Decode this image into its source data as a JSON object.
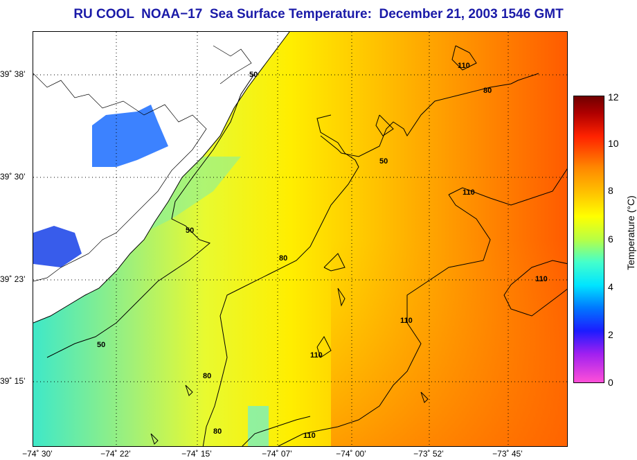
{
  "title": "RU COOL  NOAA−17  Sea Surface Temperature:  December 21, 2003 1546 GMT",
  "latitude_labels": [
    "39˚ 38’",
    "39˚ 30’",
    "39˚ 23’",
    "39˚ 15’"
  ],
  "longitude_labels": [
    "−74˚ 30’",
    "−74˚ 22’",
    "−74˚ 15’",
    "−74˚ 07’",
    "−74˚ 00’",
    "−73˚ 52’",
    "−73˚ 45’"
  ],
  "contour_labels": [
    "50",
    "50",
    "50",
    "50",
    "80",
    "80",
    "80",
    "80",
    "110",
    "110",
    "110",
    "110",
    "110",
    "110"
  ],
  "colorbar": {
    "label": "Temperature (°C)",
    "ticks": [
      "12",
      "10",
      "8",
      "6",
      "4",
      "2",
      "0"
    ],
    "min": 0,
    "max": 12
  },
  "colors": {
    "title": "#1a1aa8",
    "land": "#ffffff",
    "coastline": "#000000"
  }
}
